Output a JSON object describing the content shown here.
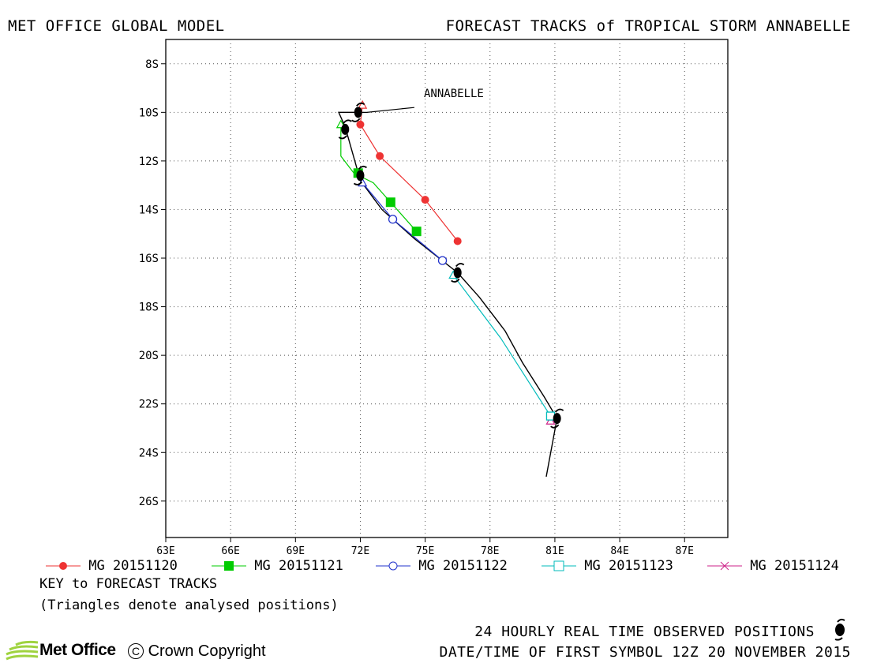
{
  "header": {
    "left": "MET OFFICE GLOBAL MODEL",
    "right": "FORECAST TRACKS of TROPICAL STORM ANNABELLE"
  },
  "chart_data": {
    "type": "line",
    "title": "FORECAST TRACKS of TROPICAL STORM ANNABELLE",
    "xlim": [
      63,
      89
    ],
    "ylim": [
      -27.5,
      -7
    ],
    "grid": true,
    "x_ticks": [
      "63E",
      "66E",
      "69E",
      "72E",
      "75E",
      "78E",
      "81E",
      "84E",
      "87E"
    ],
    "x_tick_values": [
      63,
      66,
      69,
      72,
      75,
      78,
      81,
      84,
      87
    ],
    "y_ticks": [
      "8S",
      "10S",
      "12S",
      "14S",
      "16S",
      "18S",
      "20S",
      "22S",
      "24S",
      "26S"
    ],
    "y_tick_values": [
      -8,
      -10,
      -12,
      -14,
      -16,
      -18,
      -20,
      -22,
      -24,
      -26
    ],
    "storm_label": "ANNABELLE",
    "observed": {
      "color": "#000000",
      "track": [
        [
          72.0,
          -10.0
        ],
        [
          71.0,
          -10.0
        ],
        [
          71.3,
          -10.6
        ],
        [
          72.0,
          -12.8
        ],
        [
          73.0,
          -14.0
        ],
        [
          74.5,
          -15.2
        ],
        [
          76.5,
          -16.6
        ],
        [
          77.5,
          -17.6
        ],
        [
          78.7,
          -19.0
        ],
        [
          79.5,
          -20.3
        ],
        [
          80.5,
          -21.7
        ],
        [
          81.1,
          -22.6
        ],
        [
          80.6,
          -25.0
        ]
      ],
      "symbols": [
        [
          71.9,
          -10.0
        ],
        [
          71.3,
          -10.7
        ],
        [
          72.0,
          -12.6
        ],
        [
          76.5,
          -16.6
        ],
        [
          81.1,
          -22.6
        ]
      ],
      "label_line": [
        [
          72.0,
          -10.0
        ],
        [
          72.3,
          -10.0
        ],
        [
          74.5,
          -9.8
        ]
      ]
    },
    "series": [
      {
        "name": "MG 20151120",
        "color": "#ee3333",
        "marker": "filled-circle",
        "points": [
          [
            72.0,
            -10.5
          ],
          [
            72.9,
            -11.8
          ],
          [
            75.0,
            -13.6
          ],
          [
            76.5,
            -15.3
          ]
        ],
        "analysed": [
          72.1,
          -9.7
        ]
      },
      {
        "name": "MG 20151121",
        "color": "#00cc00",
        "marker": "filled-square",
        "points": [
          [
            71.9,
            -12.5
          ],
          [
            73.4,
            -13.7
          ],
          [
            74.6,
            -14.9
          ]
        ],
        "analysed": [
          71.1,
          -10.5
        ],
        "track": [
          [
            71.1,
            -10.5
          ],
          [
            71.1,
            -11.8
          ],
          [
            71.7,
            -12.5
          ],
          [
            72.6,
            -12.9
          ],
          [
            73.4,
            -13.7
          ],
          [
            74.6,
            -14.9
          ]
        ]
      },
      {
        "name": "MG 20151122",
        "color": "#2233cc",
        "marker": "open-circle",
        "points": [
          [
            73.5,
            -14.4
          ],
          [
            75.8,
            -16.1
          ]
        ],
        "analysed": [
          72.1,
          -12.9
        ]
      },
      {
        "name": "MG 20151123",
        "color": "#00bbbb",
        "marker": "open-square",
        "points": [
          [
            80.8,
            -22.5
          ]
        ],
        "analysed": [
          76.3,
          -16.7
        ],
        "track": [
          [
            76.3,
            -16.7
          ],
          [
            78.5,
            -19.3
          ],
          [
            80.8,
            -22.5
          ]
        ]
      },
      {
        "name": "MG 20151124",
        "color": "#cc2288",
        "marker": "cross",
        "points": [],
        "analysed": [
          80.8,
          -22.7
        ]
      }
    ]
  },
  "notes": {
    "key_title": "KEY to FORECAST TRACKS",
    "triangles": "(Triangles denote analysed positions)",
    "observed": "24 HOURLY REAL TIME OBSERVED POSITIONS",
    "datetime": "DATE/TIME OF FIRST SYMBOL 12Z 20 NOVEMBER 2015"
  },
  "branding": {
    "logo_text": "Met Office",
    "copyright": "Crown Copyright",
    "copyright_symbol": "C",
    "logo_color": "#9fd33f"
  }
}
